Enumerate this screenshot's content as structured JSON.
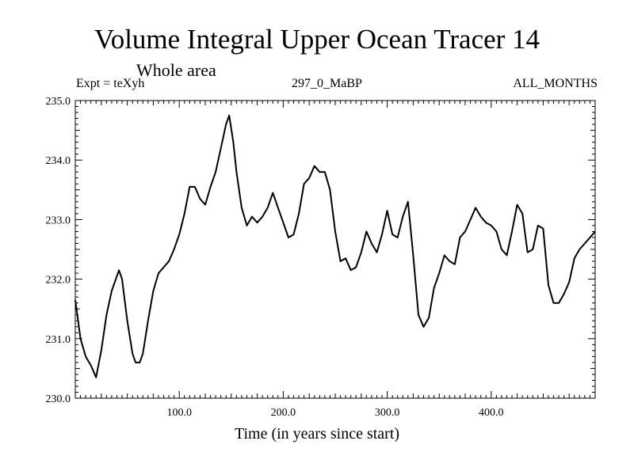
{
  "header": {
    "title": "Volume Integral Upper Ocean Tracer 14",
    "subtitle": "Whole area",
    "expt": "Expt = teXyh",
    "run": "297_0_MaBP",
    "months": "ALL_MONTHS"
  },
  "chart_data": {
    "type": "line",
    "title": "Volume Integral Upper Ocean Tracer 14",
    "subtitle": "Whole area",
    "xlabel": "Time (in years since start)",
    "ylabel": "",
    "xlim": [
      0,
      500
    ],
    "ylim": [
      230.0,
      235.0
    ],
    "x_ticks": [
      100,
      200,
      300,
      400
    ],
    "x_tick_labels": [
      "100.0",
      "200.0",
      "300.0",
      "400.0"
    ],
    "y_ticks": [
      230,
      231,
      232,
      233,
      234,
      235
    ],
    "y_tick_labels": [
      "230.0",
      "231.0",
      "232.0",
      "233.0",
      "234.0",
      "235.0"
    ],
    "grid": false,
    "series": [
      {
        "name": "",
        "color": "#000000",
        "x": [
          0,
          5,
          10,
          15,
          20,
          25,
          30,
          35,
          40,
          42,
          45,
          50,
          55,
          58,
          62,
          65,
          70,
          75,
          80,
          85,
          90,
          95,
          100,
          105,
          110,
          115,
          120,
          125,
          130,
          135,
          140,
          145,
          148,
          152,
          155,
          160,
          165,
          170,
          175,
          180,
          185,
          190,
          195,
          200,
          205,
          210,
          215,
          220,
          225,
          230,
          235,
          240,
          245,
          250,
          255,
          260,
          265,
          270,
          275,
          280,
          285,
          290,
          295,
          300,
          305,
          310,
          315,
          320,
          325,
          330,
          335,
          340,
          345,
          350,
          355,
          360,
          365,
          370,
          375,
          380,
          385,
          390,
          395,
          400,
          405,
          410,
          415,
          420,
          425,
          430,
          435,
          440,
          445,
          450,
          455,
          460,
          465,
          470,
          475,
          480,
          485,
          490,
          495,
          500
        ],
        "values": [
          231.65,
          231.0,
          230.7,
          230.55,
          230.35,
          230.8,
          231.4,
          231.8,
          232.05,
          232.15,
          232.0,
          231.3,
          230.75,
          230.6,
          230.6,
          230.75,
          231.3,
          231.8,
          232.1,
          232.2,
          232.3,
          232.5,
          232.75,
          233.1,
          233.55,
          233.55,
          233.35,
          233.25,
          233.55,
          233.8,
          234.2,
          234.6,
          234.75,
          234.3,
          233.8,
          233.2,
          232.9,
          233.05,
          232.95,
          233.05,
          233.2,
          233.45,
          233.2,
          232.95,
          232.7,
          232.75,
          233.1,
          233.6,
          233.7,
          233.9,
          233.8,
          233.8,
          233.5,
          232.8,
          232.3,
          232.35,
          232.15,
          232.2,
          232.45,
          232.8,
          232.6,
          232.45,
          232.75,
          233.15,
          232.75,
          232.7,
          233.05,
          233.3,
          232.4,
          231.4,
          231.2,
          231.35,
          231.85,
          232.1,
          232.4,
          232.3,
          232.25,
          232.7,
          232.8,
          233.0,
          233.2,
          233.05,
          232.95,
          232.9,
          232.8,
          232.5,
          232.4,
          232.8,
          233.25,
          233.1,
          232.45,
          232.5,
          232.9,
          232.85,
          231.9,
          231.6,
          231.6,
          231.75,
          231.95,
          232.35,
          232.5,
          232.6,
          232.7,
          232.8
        ]
      }
    ]
  }
}
